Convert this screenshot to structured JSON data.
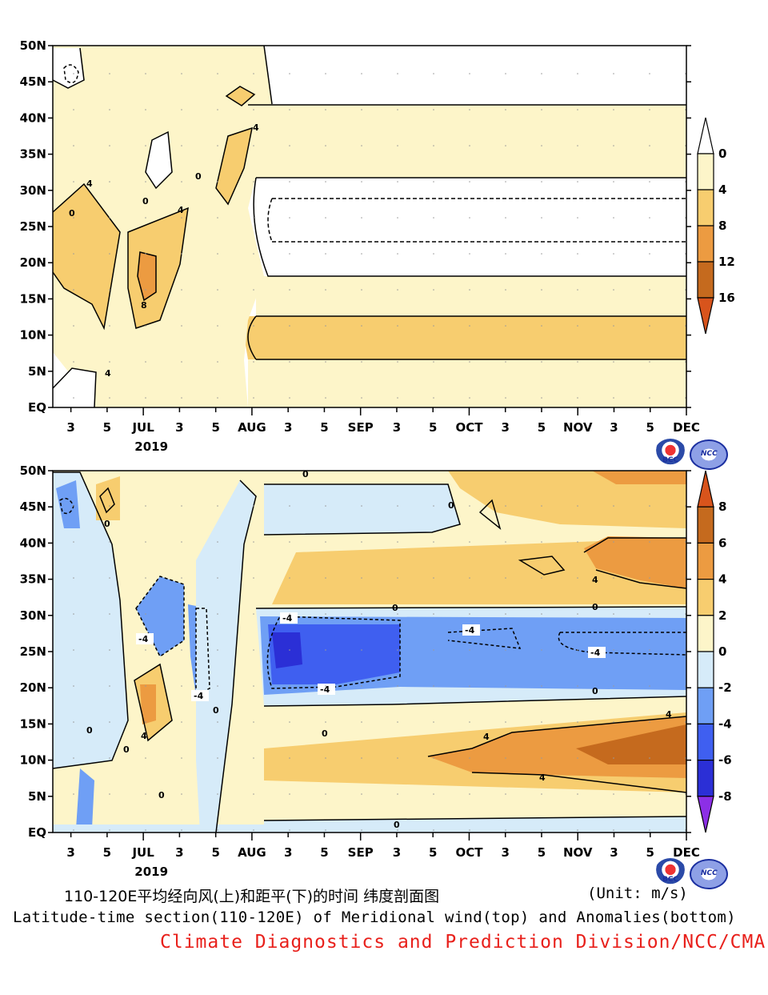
{
  "chart_data": [
    {
      "type": "heatmap",
      "title": "110-120E平均经向风(上)",
      "ylabel": "",
      "xlabel": "",
      "y_ticks": [
        "EQ",
        "5N",
        "10N",
        "15N",
        "20N",
        "25N",
        "30N",
        "35N",
        "40N",
        "45N",
        "50N"
      ],
      "x_ticks": [
        "3",
        "5",
        "JUL",
        "3",
        "5",
        "AUG",
        "3",
        "5",
        "SEP",
        "3",
        "5",
        "OCT",
        "3",
        "5",
        "NOV",
        "3",
        "5",
        "DEC"
      ],
      "x_year": "2019",
      "colorbar": {
        "levels": [
          "0",
          "4",
          "8",
          "12",
          "16"
        ],
        "colors": [
          "#ffffff",
          "#fdf5c9",
          "#f7cd6f",
          "#ec9b41",
          "#c56a1e",
          "#d8541c"
        ]
      },
      "contour_labels": [
        "0",
        "4",
        "8"
      ],
      "bands": [
        {
          "lat_from": 5.0,
          "lat_to": 6.5,
          "level": "0-4"
        },
        {
          "lat_from": 6.5,
          "lat_to": 12.5,
          "level": "4-8"
        },
        {
          "lat_from": 12.5,
          "lat_to": 18.0,
          "level": "0-4"
        },
        {
          "lat_from": 18.0,
          "lat_to": 31.5,
          "level": "<0"
        },
        {
          "lat_from": 31.5,
          "lat_to": 41.5,
          "level": "0-4"
        },
        {
          "lat_from": 41.5,
          "lat_to": 50.0,
          "level": "<0"
        }
      ]
    },
    {
      "type": "heatmap",
      "title": "和距平(下)",
      "ylabel": "",
      "xlabel": "",
      "y_ticks": [
        "EQ",
        "5N",
        "10N",
        "15N",
        "20N",
        "25N",
        "30N",
        "35N",
        "40N",
        "45N",
        "50N"
      ],
      "x_ticks": [
        "3",
        "5",
        "JUL",
        "3",
        "5",
        "AUG",
        "3",
        "5",
        "SEP",
        "3",
        "5",
        "OCT",
        "3",
        "5",
        "NOV",
        "3",
        "5",
        "DEC"
      ],
      "x_year": "2019",
      "colorbar": {
        "levels": [
          "8",
          "6",
          "4",
          "2",
          "0",
          "-2",
          "-4",
          "-6",
          "-8"
        ],
        "colors": [
          "#d8541c",
          "#c56a1e",
          "#ec9b41",
          "#f7cd6f",
          "#fdf5c9",
          "#d6ebf9",
          "#6f9ff5",
          "#3f5ff0",
          "#2b2fd6",
          "#8c2fe6"
        ]
      },
      "contour_labels": [
        "0",
        "-4",
        "4"
      ]
    }
  ],
  "caption": {
    "line1_cn": "110-120E平均经向风(上)和距平(下)的时间 纬度剖面图",
    "unit": "(Unit: m/s)",
    "line2_en": "Latitude-time section(110-120E) of Meridional wind(top) and Anomalies(bottom)",
    "credit": "Climate Diagnostics and Prediction Division/NCC/CMA"
  },
  "logos": {
    "bcc": "BCC",
    "ncc": "NCC"
  }
}
